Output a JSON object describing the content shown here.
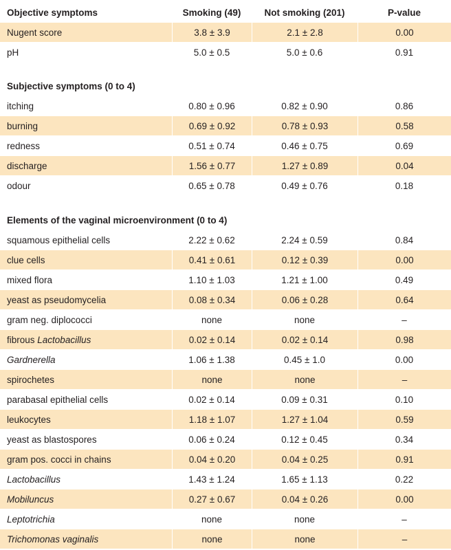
{
  "header": {
    "col0": "Objective symptoms",
    "col1": "Smoking (49)",
    "col2": "Not smoking (201)",
    "col3": "P-value"
  },
  "rows": [
    {
      "label": "Nugent score",
      "smoking": "3.8 ± 3.9",
      "not_smoking": "2.1 ± 2.8",
      "p": "0.00"
    },
    {
      "label": "pH",
      "smoking": "5.0 ± 0.5",
      "not_smoking": "5.0 ± 0.6",
      "p": "0.91"
    }
  ],
  "section_subjective": "Subjective symptoms (0 to 4)",
  "subjective_rows": [
    {
      "label": "itching",
      "smoking": "0.80 ± 0.96",
      "not_smoking": "0.82 ± 0.90",
      "p": "0.86"
    },
    {
      "label": "burning",
      "smoking": "0.69 ± 0.92",
      "not_smoking": "0.78 ± 0.93",
      "p": "0.58"
    },
    {
      "label": "redness",
      "smoking": "0.51 ± 0.74",
      "not_smoking": "0.46 ± 0.75",
      "p": "0.69"
    },
    {
      "label": "discharge",
      "smoking": "1.56 ± 0.77",
      "not_smoking": "1.27 ± 0.89",
      "p": "0.04"
    },
    {
      "label": "odour",
      "smoking": "0.65 ± 0.78",
      "not_smoking": "0.49 ± 0.76",
      "p": "0.18"
    }
  ],
  "section_elements": "Elements of the vaginal microenvironment (0 to 4)",
  "element_rows": [
    {
      "label": "squamous epithelial cells",
      "smoking": "2.22 ± 0.62",
      "not_smoking": "2.24 ± 0.59",
      "p": "0.84"
    },
    {
      "label": "clue cells",
      "smoking": "0.41 ± 0.61",
      "not_smoking": "0.12 ± 0.39",
      "p": "0.00"
    },
    {
      "label": "mixed flora",
      "smoking": "1.10 ± 1.03",
      "not_smoking": "1.21 ± 1.00",
      "p": "0.49"
    },
    {
      "label": "yeast as pseudomycelia",
      "smoking": "0.08 ± 0.34",
      "not_smoking": "0.06 ± 0.28",
      "p": "0.64"
    },
    {
      "label": "gram neg. diplococci",
      "smoking": "none",
      "not_smoking": "none",
      "p": "–"
    },
    {
      "label_prefix": "fibrous ",
      "label_italic": "Lactobacillus",
      "smoking": "0.02 ± 0.14",
      "not_smoking": "0.02 ± 0.14",
      "p": "0.98"
    },
    {
      "label_italic": "Gardnerella",
      "smoking": "1.06 ± 1.38",
      "not_smoking": "0.45 ± 1.0",
      "p": "0.00"
    },
    {
      "label": "spirochetes",
      "smoking": "none",
      "not_smoking": "none",
      "p": "–"
    },
    {
      "label": "parabasal epithelial cells",
      "smoking": "0.02 ± 0.14",
      "not_smoking": "0.09 ± 0.31",
      "p": "0.10"
    },
    {
      "label": "leukocytes",
      "smoking": "1.18 ± 1.07",
      "not_smoking": "1.27 ± 1.04",
      "p": "0.59"
    },
    {
      "label": "yeast as blastospores",
      "smoking": "0.06 ± 0.24",
      "not_smoking": "0.12 ± 0.45",
      "p": "0.34"
    },
    {
      "label": "gram pos. cocci in chains",
      "smoking": "0.04 ± 0.20",
      "not_smoking": "0.04 ± 0.25",
      "p": "0.91"
    },
    {
      "label_italic": "Lactobacillus",
      "smoking": "1.43 ± 1.24",
      "not_smoking": "1.65 ± 1.13",
      "p": "0.22"
    },
    {
      "label_italic": "Mobiluncus",
      "smoking": "0.27 ± 0.67",
      "not_smoking": "0.04 ± 0.26",
      "p": "0.00"
    },
    {
      "label_italic": "Leptotrichia",
      "smoking": "none",
      "not_smoking": "none",
      "p": "–"
    },
    {
      "label_italic": "Trichomonas vaginalis",
      "smoking": "none",
      "not_smoking": "none",
      "p": "–"
    }
  ],
  "colors": {
    "shade": "#fce5bf",
    "text": "#231f20"
  }
}
